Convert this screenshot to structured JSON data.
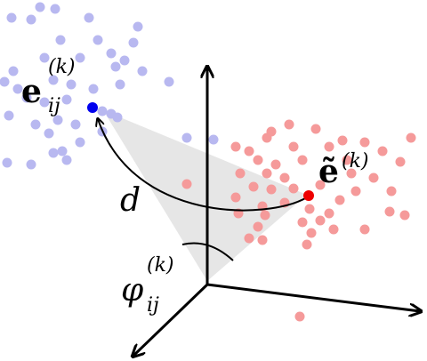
{
  "labels": {
    "edge_embedding": {
      "base": "e",
      "subscript": "ij",
      "superscript": "(k)"
    },
    "mean_embedding": {
      "base": "ẽ",
      "superscript": "(k)"
    },
    "distance": "d",
    "angle": {
      "base": "φ",
      "subscript": "ij",
      "superscript": "(k)"
    }
  }
}
